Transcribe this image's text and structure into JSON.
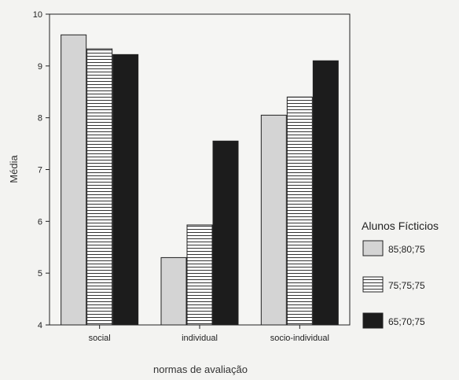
{
  "chart_data": {
    "type": "bar",
    "categories": [
      "social",
      "individual",
      "socio-individual"
    ],
    "series": [
      {
        "name": "85;80;75",
        "values": [
          9.6,
          5.3,
          8.05
        ]
      },
      {
        "name": "75;75;75",
        "values": [
          9.33,
          5.93,
          8.4
        ]
      },
      {
        "name": "65;70;75",
        "values": [
          9.22,
          7.55,
          9.1
        ]
      }
    ],
    "xlabel": "normas de avaliação",
    "ylabel": "Média",
    "ylim": [
      4,
      10
    ],
    "yticks": [
      4,
      5,
      6,
      7,
      8,
      9,
      10
    ],
    "legend": {
      "title": "Alunos Fícticios",
      "placement": "right"
    },
    "series_styles": [
      {
        "fill": "#d4d4d4",
        "pattern": "solid"
      },
      {
        "fill": "#ffffff",
        "pattern": "horizontal-lines"
      },
      {
        "fill": "#1c1c1c",
        "pattern": "solid"
      }
    ],
    "grid": false
  }
}
